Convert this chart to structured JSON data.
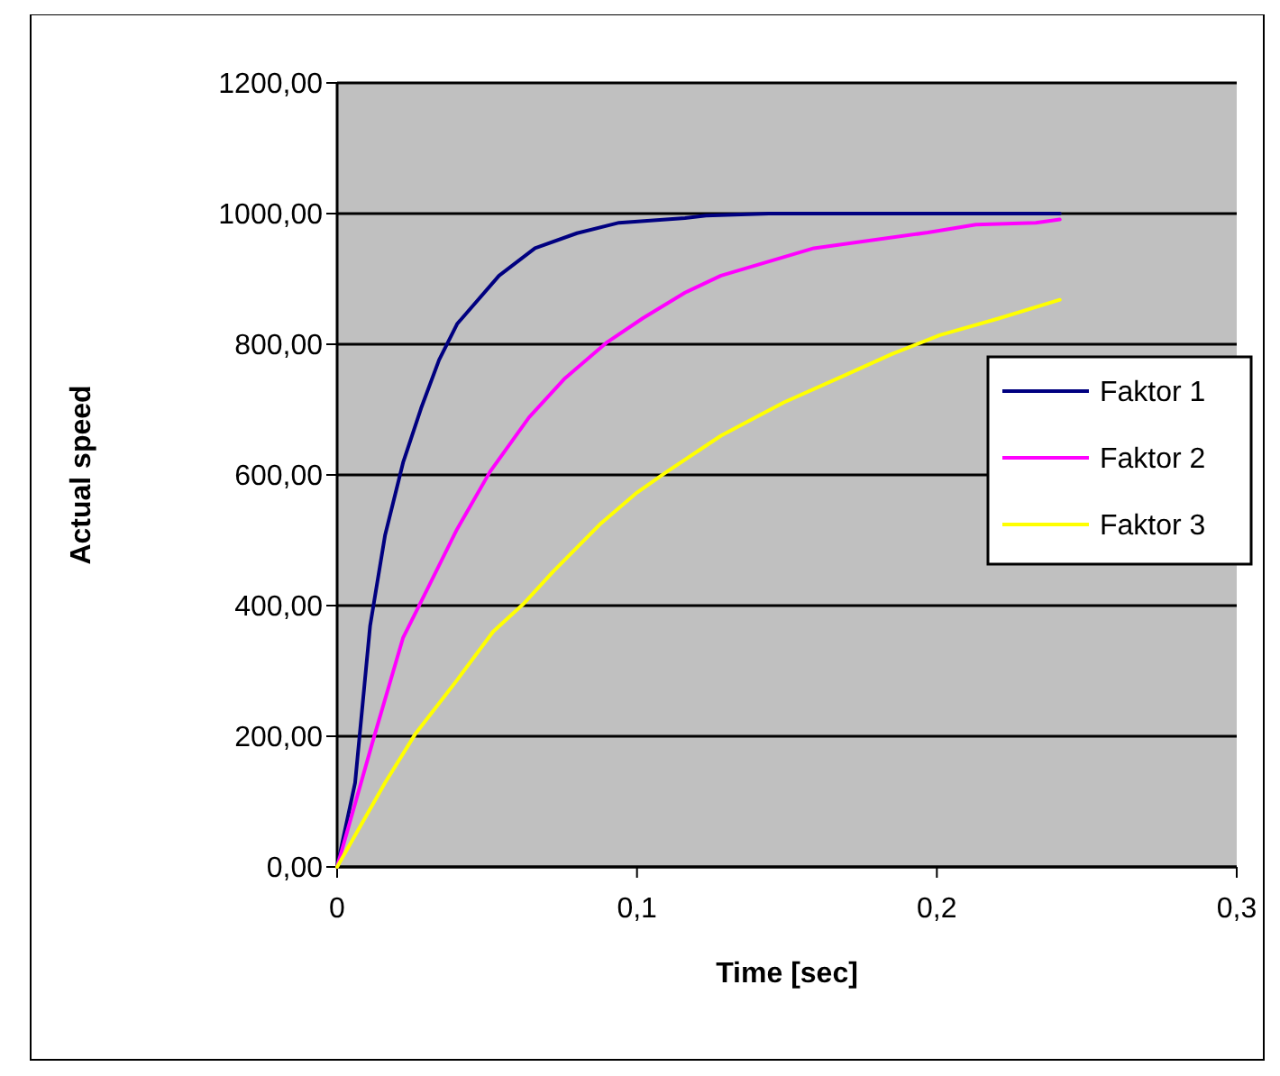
{
  "chart_data": {
    "type": "line",
    "xlabel": "Time [sec]",
    "ylabel": "Actual speed",
    "xlim": [
      0,
      0.3
    ],
    "xticks": [
      0,
      {
        "value": 0.1,
        "label": "0,1"
      },
      {
        "value": 0.2,
        "label": "0,2"
      },
      {
        "value": 0.3,
        "label": "0,3"
      }
    ],
    "ylim": [
      0,
      1200
    ],
    "yticks": [
      {
        "value": 0,
        "label": "0,00"
      },
      {
        "value": 200,
        "label": "200,00"
      },
      {
        "value": 400,
        "label": "400,00"
      },
      {
        "value": 600,
        "label": "600,00"
      },
      {
        "value": 800,
        "label": "800,00"
      },
      {
        "value": 1000,
        "label": "1000,00"
      },
      {
        "value": 1200,
        "label": "1200,00"
      }
    ],
    "grid": "y",
    "legend": "right",
    "marker": "none",
    "line_style": "solid",
    "series": [
      {
        "name": "Faktor 1",
        "color": "#000080",
        "x": [
          0,
          0.006,
          0.011,
          0.016,
          0.022,
          0.028,
          0.034,
          0.04,
          0.054,
          0.066,
          0.08,
          0.094,
          0.116,
          0.123,
          0.144,
          0.241
        ],
        "values": [
          0,
          129,
          369,
          508,
          619,
          702,
          776,
          831,
          905,
          947,
          970,
          986,
          993,
          997,
          1000,
          1000
        ]
      },
      {
        "name": "Faktor 2",
        "color": "#ff00ff",
        "x": [
          0,
          0.012,
          0.022,
          0.028,
          0.04,
          0.051,
          0.064,
          0.076,
          0.09,
          0.102,
          0.116,
          0.128,
          0.159,
          0.197,
          0.213,
          0.233,
          0.241
        ],
        "values": [
          0,
          194,
          351,
          406,
          517,
          605,
          688,
          748,
          803,
          840,
          879,
          905,
          947,
          971,
          983,
          986,
          991
        ]
      },
      {
        "name": "Faktor 3",
        "color": "#ffff00",
        "x": [
          0,
          0.016,
          0.026,
          0.04,
          0.052,
          0.062,
          0.072,
          0.088,
          0.1,
          0.11,
          0.128,
          0.149,
          0.169,
          0.185,
          0.201,
          0.221,
          0.241
        ],
        "values": [
          0,
          129,
          203,
          286,
          360,
          402,
          452,
          526,
          573,
          605,
          660,
          711,
          752,
          785,
          814,
          840,
          868
        ]
      }
    ]
  }
}
